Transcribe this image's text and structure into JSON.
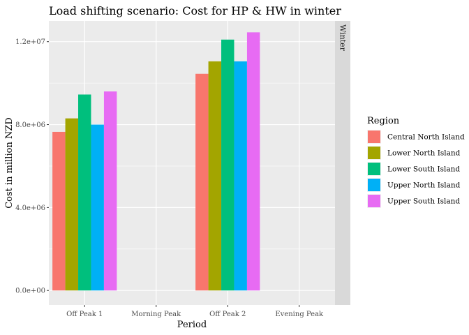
{
  "chart_data": {
    "type": "bar",
    "title": "Load shifting scenario: Cost for HP & HW in winter",
    "xlabel": "Period",
    "ylabel": "Cost in million NZD",
    "facet": "Winter",
    "categories": [
      "Off Peak 1",
      "Morning Peak",
      "Off Peak 2",
      "Evening Peak"
    ],
    "ylim": [
      -700000,
      13000000
    ],
    "yticks": [
      0,
      4000000,
      8000000,
      12000000
    ],
    "ytick_labels": [
      "0.0e+00",
      "4.0e+06",
      "8.0e+06",
      "1.2e+07"
    ],
    "grid": true,
    "legend": {
      "title": "Region",
      "position": "right"
    },
    "series": [
      {
        "name": "Central North Island",
        "color": "#F8766D",
        "values": [
          7650000,
          null,
          10450000,
          null
        ]
      },
      {
        "name": "Lower North Island",
        "color": "#A3A500",
        "values": [
          8300000,
          null,
          11050000,
          null
        ]
      },
      {
        "name": "Lower South Island",
        "color": "#00BF7D",
        "values": [
          9450000,
          null,
          12100000,
          null
        ]
      },
      {
        "name": "Upper North Island",
        "color": "#00B0F6",
        "values": [
          8000000,
          null,
          11050000,
          null
        ]
      },
      {
        "name": "Upper South Island",
        "color": "#E76BF3",
        "values": [
          9600000,
          null,
          12450000,
          null
        ]
      }
    ]
  }
}
